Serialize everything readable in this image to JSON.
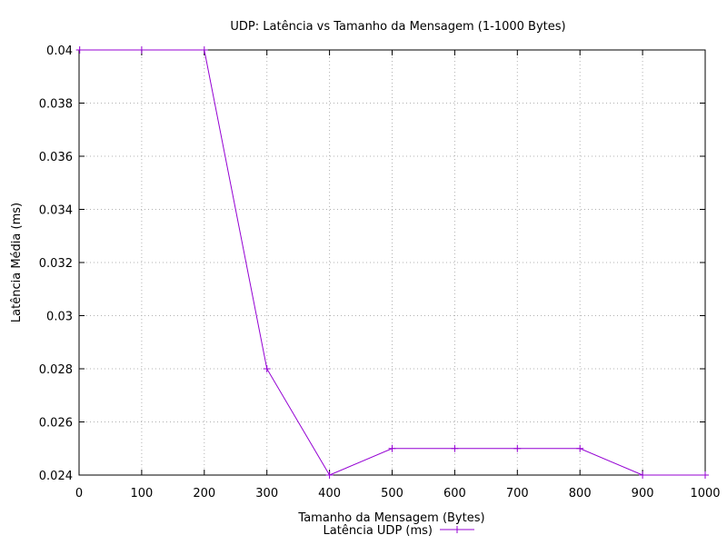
{
  "chart_data": {
    "type": "line",
    "title": "UDP: Latência vs Tamanho da Mensagem (1-1000 Bytes)",
    "xlabel": "Tamanho da Mensagem (Bytes)",
    "ylabel": "Latência Média (ms)",
    "xlim": [
      0,
      1000
    ],
    "ylim": [
      0.024,
      0.04
    ],
    "xticks": [
      "0",
      "100",
      "200",
      "300",
      "400",
      "500",
      "600",
      "700",
      "800",
      "900",
      "1000"
    ],
    "yticks": [
      "0.024",
      "0.026",
      "0.028",
      "0.03",
      "0.032",
      "0.034",
      "0.036",
      "0.038",
      "0.04"
    ],
    "grid": true,
    "legend_position": "bottom-center",
    "series": [
      {
        "name": "Latência UDP (ms)",
        "color": "#9400d3",
        "marker": "plus",
        "x": [
          1,
          100,
          200,
          300,
          400,
          500,
          600,
          700,
          800,
          900,
          1000
        ],
        "y": [
          0.04,
          0.04,
          0.04,
          0.028,
          0.024,
          0.025,
          0.025,
          0.025,
          0.025,
          0.024,
          0.024
        ]
      }
    ]
  }
}
